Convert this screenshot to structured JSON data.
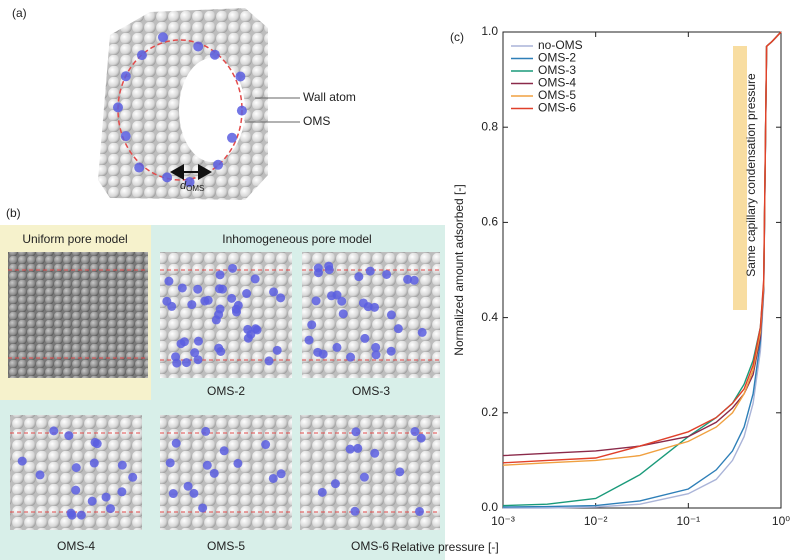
{
  "panel_a": {
    "label": "(a)",
    "wall_atom": "Wall atom",
    "oms": "OMS",
    "d_symbol": "d",
    "d_subscript": "OMS"
  },
  "panel_b": {
    "label": "(b)",
    "uniform_title": "Uniform pore model",
    "inhomogeneous_title": "Inhomogeneous pore model",
    "models": [
      "OMS-2",
      "OMS-3",
      "OMS-4",
      "OMS-5",
      "OMS-6"
    ]
  },
  "chart_data": {
    "type": "line",
    "panel_label": "(c)",
    "xlabel": "Relative pressure [-]",
    "ylabel": "Normalized amount adsorbed [-]",
    "annotation": "Same capillary condensation pressure",
    "xscale": "log",
    "xlim": [
      0.001,
      1
    ],
    "xticks": [
      {
        "value": 0.001,
        "label": "10⁻³"
      },
      {
        "value": 0.01,
        "label": "10⁻²"
      },
      {
        "value": 0.1,
        "label": "10⁻¹"
      },
      {
        "value": 1,
        "label": "10⁰"
      }
    ],
    "ylim": [
      0,
      1
    ],
    "yticks": [
      {
        "value": 0,
        "label": "0.0"
      },
      0.2,
      0.4,
      0.6,
      0.8,
      {
        "value": 1,
        "label": "1.0"
      }
    ],
    "legend": "upper left",
    "x": [
      0.001,
      0.003,
      0.01,
      0.03,
      0.1,
      0.2,
      0.3,
      0.4,
      0.5,
      0.6,
      0.65,
      0.7,
      0.8,
      1.0
    ],
    "series": [
      {
        "name": "no-OMS",
        "color": "#aab4d8",
        "values": [
          0,
          0,
          0.002,
          0.008,
          0.03,
          0.06,
          0.1,
          0.15,
          0.22,
          0.33,
          0.45,
          0.97,
          0.98,
          1.0
        ]
      },
      {
        "name": "OMS-2",
        "color": "#2e7fb8",
        "values": [
          0.002,
          0.003,
          0.005,
          0.015,
          0.04,
          0.08,
          0.12,
          0.17,
          0.24,
          0.35,
          0.46,
          0.97,
          0.98,
          1.0
        ]
      },
      {
        "name": "OMS-3",
        "color": "#1a9a7a",
        "values": [
          0.005,
          0.008,
          0.02,
          0.07,
          0.15,
          0.19,
          0.22,
          0.26,
          0.31,
          0.38,
          0.47,
          0.97,
          0.98,
          1.0
        ]
      },
      {
        "name": "OMS-4",
        "color": "#8b2a4a",
        "values": [
          0.11,
          0.115,
          0.12,
          0.13,
          0.15,
          0.18,
          0.21,
          0.24,
          0.28,
          0.36,
          0.46,
          0.97,
          0.98,
          1.0
        ]
      },
      {
        "name": "OMS-5",
        "color": "#f0a040",
        "values": [
          0.09,
          0.095,
          0.1,
          0.11,
          0.14,
          0.17,
          0.2,
          0.24,
          0.29,
          0.37,
          0.47,
          0.97,
          0.98,
          1.0
        ]
      },
      {
        "name": "OMS-6",
        "color": "#e0402a",
        "values": [
          0.095,
          0.1,
          0.105,
          0.13,
          0.16,
          0.19,
          0.22,
          0.25,
          0.3,
          0.38,
          0.48,
          0.97,
          0.98,
          1.0
        ]
      }
    ]
  }
}
